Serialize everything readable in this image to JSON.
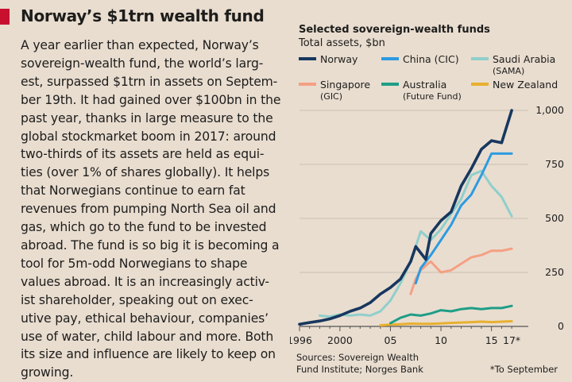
{
  "article": {
    "headline": "Norway’s $1trn wealth fund",
    "body_lines": [
      "A year earlier than expected, Norway’s",
      "sovereign-wealth fund, the world’s larg-",
      "est, surpassed $1trn in assets on Septem-",
      "ber 19th. It had gained over $100bn in the",
      "past year, thanks in large measure to the",
      "global stockmarket boom in 2017: around",
      "two-thirds of its assets are held as equi-",
      "ties (over 1% of shares globally). It helps",
      "that Norwegians continue to earn fat",
      "revenues from pumping North Sea oil and",
      "gas, which go to the fund to be invested",
      "abroad. The fund is so big it is becoming a",
      "tool for 5m-odd Norwegians to shape",
      "values abroad. It is an increasingly activ-",
      "ist shareholder, speaking out on exec-",
      "utive pay, ethical behaviour, companies’",
      "use of water, child labour and more. Both",
      "its size and influence are likely to keep on",
      "growing."
    ]
  },
  "colors": {
    "background": "#e9ddd0",
    "accent_red": "#c8102e",
    "norway": "#17375e",
    "china": "#2c9be0",
    "saudi": "#8fcfcb",
    "singapore": "#f4a083",
    "australia": "#1f9e86",
    "newzealand": "#e8b02f"
  },
  "chart_data": {
    "type": "line",
    "title": "Selected sovereign-wealth funds",
    "ylabel": "Total assets, $bn",
    "xlim": [
      1996,
      2017.7
    ],
    "ylim": [
      0,
      1000
    ],
    "y_ticks": [
      {
        "value": 0,
        "label": "0"
      },
      {
        "value": 250,
        "label": "250"
      },
      {
        "value": 500,
        "label": "500"
      },
      {
        "value": 750,
        "label": "750"
      },
      {
        "value": 1000,
        "label": "1,000"
      }
    ],
    "x_ticks": [
      {
        "value": 1996,
        "label": "1996"
      },
      {
        "value": 2000,
        "label": "2000"
      },
      {
        "value": 2005,
        "label": "05"
      },
      {
        "value": 2010,
        "label": "10"
      },
      {
        "value": 2015,
        "label": "15"
      },
      {
        "value": 2017,
        "label": "17*"
      }
    ],
    "grid": true,
    "series": [
      {
        "name": "Norway",
        "key": "norway",
        "x": [
          1996,
          1997,
          1998,
          1999,
          2000,
          2001,
          2002,
          2003,
          2004,
          2005,
          2006,
          2007,
          2007.5,
          2008,
          2008.5,
          2009,
          2010,
          2011,
          2012,
          2013,
          2014,
          2015,
          2016,
          2017
        ],
        "y": [
          10,
          18,
          25,
          35,
          50,
          70,
          85,
          110,
          150,
          180,
          220,
          300,
          370,
          340,
          310,
          430,
          490,
          530,
          650,
          730,
          820,
          860,
          850,
          1000
        ]
      },
      {
        "name": "China (CIC)",
        "key": "china",
        "x": [
          2007.5,
          2008,
          2009,
          2010,
          2011,
          2012,
          2013,
          2014,
          2015,
          2016,
          2017
        ],
        "y": [
          200,
          270,
          330,
          400,
          470,
          560,
          610,
          700,
          800,
          800,
          800
        ]
      },
      {
        "name": "Saudi Arabia (SAMA)",
        "key": "saudi",
        "x": [
          1998,
          1999,
          2000,
          2001,
          2002,
          2003,
          2004,
          2005,
          2006,
          2007,
          2008,
          2008.5,
          2009,
          2010,
          2011,
          2012,
          2013,
          2014,
          2015,
          2016,
          2017
        ],
        "y": [
          50,
          45,
          55,
          50,
          55,
          50,
          70,
          120,
          200,
          300,
          440,
          420,
          400,
          450,
          520,
          590,
          700,
          720,
          650,
          600,
          510
        ]
      },
      {
        "name": "Singapore (GIC)",
        "key": "singapore",
        "x": [
          2007,
          2007.5,
          2008,
          2008.7,
          2009,
          2010,
          2011,
          2012,
          2013,
          2014,
          2015,
          2016,
          2017
        ],
        "y": [
          150,
          220,
          260,
          290,
          300,
          250,
          260,
          290,
          320,
          330,
          350,
          350,
          360
        ]
      },
      {
        "name": "Australia (Future Fund)",
        "key": "australia",
        "x": [
          2005,
          2006,
          2007,
          2008,
          2009,
          2010,
          2011,
          2012,
          2013,
          2014,
          2015,
          2016,
          2017
        ],
        "y": [
          15,
          40,
          55,
          50,
          60,
          75,
          70,
          80,
          85,
          80,
          85,
          85,
          95
        ]
      },
      {
        "name": "New Zealand",
        "key": "newzealand",
        "x": [
          2004,
          2005,
          2006,
          2007,
          2008,
          2009,
          2010,
          2011,
          2012,
          2013,
          2014,
          2015,
          2016,
          2017
        ],
        "y": [
          5,
          8,
          10,
          13,
          12,
          12,
          14,
          16,
          18,
          20,
          22,
          20,
          22,
          24
        ]
      }
    ],
    "legend": [
      {
        "key": "norway",
        "label": "Norway",
        "sub": ""
      },
      {
        "key": "china",
        "label": "China (CIC)",
        "sub": ""
      },
      {
        "key": "saudi",
        "label": "Saudi Arabia",
        "sub": "(SAMA)"
      },
      {
        "key": "singapore",
        "label": "Singapore",
        "sub": "(GIC)"
      },
      {
        "key": "australia",
        "label": "Australia",
        "sub": "(Future Fund)"
      },
      {
        "key": "newzealand",
        "label": "New Zealand",
        "sub": ""
      }
    ],
    "legend_position": "top",
    "sources": [
      "Sources: Sovereign Wealth",
      "Fund Institute; Norges Bank"
    ],
    "footnote": "*To September"
  }
}
